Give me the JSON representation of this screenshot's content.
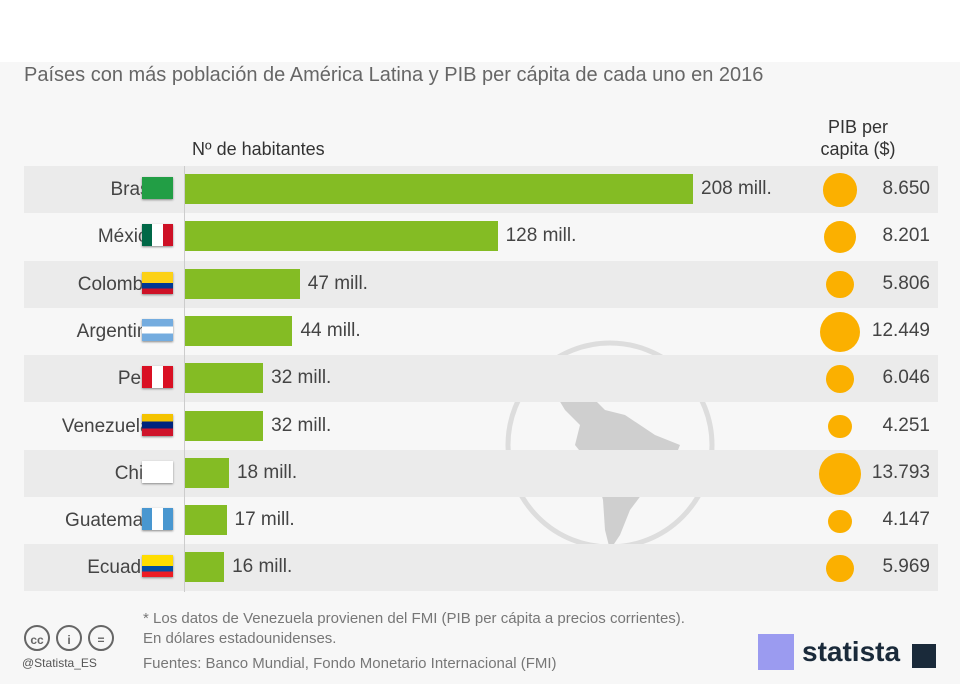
{
  "chart_data": {
    "type": "bar",
    "title": "Países con más población de América Latina  y PIB per cápita de cada uno en 2016",
    "xlabel": "Nº de habitantes",
    "second_label": "PIB per capita ($)",
    "categories": [
      "Brasil",
      "México",
      "Colombia",
      "Argentina",
      "Perú",
      "Venezuela*",
      "Chile",
      "Guatemala",
      "Ecuador"
    ],
    "series": [
      {
        "name": "Nº de habitantes",
        "unit": "mill.",
        "values": [
          208,
          128,
          47,
          44,
          32,
          32,
          18,
          17,
          16
        ],
        "labels": [
          "208 mill.",
          "128 mill.",
          "47 mill.",
          "44 mill.",
          "32 mill.",
          "32 mill.",
          "18 mill.",
          "17 mill.",
          "16 mill."
        ]
      },
      {
        "name": "PIB per capita ($)",
        "values": [
          8650,
          8201,
          5806,
          12449,
          6046,
          4251,
          13793,
          4147,
          5969
        ],
        "labels": [
          "8.650",
          "8.201",
          "5.806",
          "12.449",
          "6.046",
          "4.251",
          "13.793",
          "4.147",
          "5.969"
        ]
      }
    ],
    "xlim": [
      0,
      208
    ]
  },
  "colors": {
    "bar": "#84bc24",
    "bubble": "#fbb000"
  },
  "footer": {
    "note": "* Los datos de Venezuela provienen del FMI (PIB per cápita a precios corrientes).",
    "currency": "En dólares estadounidenses.",
    "sources": "Fuentes: Banco Mundial, Fondo Monetario Internacional (FMI)",
    "handle": "@Statista_ES",
    "brand": "statista",
    "cc": [
      "cc",
      "i",
      "="
    ]
  }
}
